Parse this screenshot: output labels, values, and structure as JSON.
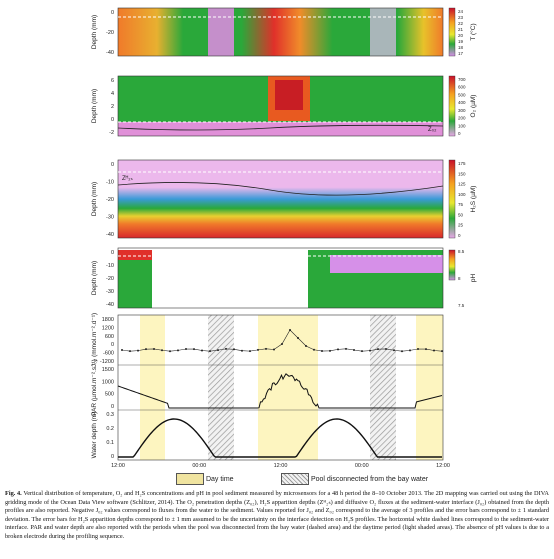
{
  "figure": {
    "panels": {
      "temperature": {
        "ylabel": "Depth (mm)",
        "cbar_label": "T (°C)",
        "yticks": [
          "0",
          "-20",
          "-40"
        ],
        "cbar_ticks": [
          "24",
          "23",
          "22",
          "21",
          "20",
          "19",
          "18",
          "17"
        ]
      },
      "oxygen": {
        "ylabel": "Depth (mm)",
        "cbar_label": "O₂ (µM)",
        "yticks": [
          "6",
          "4",
          "2",
          "0",
          "-2"
        ],
        "cbar_ticks": [
          "700",
          "600",
          "500",
          "400",
          "300",
          "200",
          "100",
          "0"
        ],
        "annotation": "Z₀₂"
      },
      "h2s": {
        "ylabel": "Depth (mm)",
        "cbar_label": "H₂S (µM)",
        "yticks": [
          "0",
          "-10",
          "-20",
          "-30",
          "-40"
        ],
        "cbar_ticks": [
          "175",
          "150",
          "125",
          "100",
          "75",
          "50",
          "25",
          "0"
        ],
        "annotation": "Zᴴ₂ₛ"
      },
      "ph": {
        "ylabel": "Depth (mm)",
        "cbar_label": "pH",
        "yticks": [
          "0",
          "-10",
          "-20",
          "-30",
          "-40"
        ],
        "cbar_ticks": [
          "8.5",
          "8",
          "7.5"
        ]
      },
      "jo2": {
        "ylabel": "J₀₂ (mmol.m⁻².d⁻¹)",
        "yticks": [
          "1800",
          "1200",
          "600",
          "0",
          "-600",
          "-1200"
        ]
      },
      "par": {
        "ylabel": "PAR (µmol.m⁻².s⁻¹)",
        "yticks": [
          "1500",
          "1000",
          "500",
          "0"
        ]
      },
      "water": {
        "ylabel": "Water depth (m)",
        "yticks": [
          "0.3",
          "0.2",
          "0.1",
          "0"
        ]
      }
    },
    "xticks": [
      "12:00",
      "00:00",
      "12:00",
      "00:00",
      "12:00"
    ],
    "legend": {
      "daytime": "Day time",
      "pool": "Pool disconnected from the bay water"
    },
    "colors": {
      "daytime": "#fdf5c0",
      "pool_hatch": "#9a9a9a",
      "temp_warm": "#d93a1e",
      "temp_cool": "#2aa83a",
      "ox_high": "#e86020",
      "ox_low": "#e090d8",
      "h2s_high": "#d8282c",
      "h2s_low": "#ecb8ec"
    }
  },
  "caption": {
    "title": "Fig. 4.",
    "text": "Vertical distribution of temperature, O₂ and H₂S concentrations and pH in pool sediment measured by microsensors for a 48 h period the 8–10 October 2013. The 2D mapping was carried out using the DIVA gridding mode of the Ocean Data View software (Schlitzer, 2014). The O₂ penetration depths (Z₀₂), H₂S apparition depths (Zᴴ₂ₛ) and diffusive O₂ fluxes at the sediment-water interface (J₀₂) obtained from the depth profiles are also reported. Negative J₀₂ values correspond to fluxes from the water to the sediment. Values reported for J₀₂ and Z₀₂ correspond to the average of 3 profiles and the error bars correspond to ± 1 standard deviation. The error bars for H₂S apparition depths correspond to ± 1 mm assumed to be the uncertainty on the interface detection on H₂S profiles. The horizontal white dashed lines correspond to the sediment-water interface. PAR and water depth are also reported with the periods when the pool was disconnected from the bay water (dashed area) and the daytime period (light shaded areas). The absence of pH values is due to a broken electrode during the profiling sequence."
  }
}
